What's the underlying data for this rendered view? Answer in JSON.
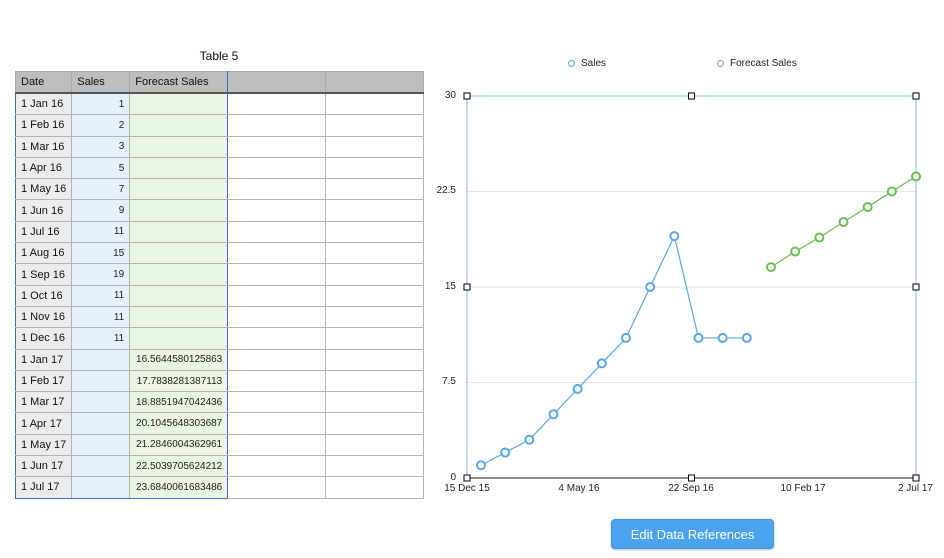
{
  "table": {
    "title": "Table 5",
    "headers": [
      "Date",
      "Sales",
      "Forecast Sales",
      "",
      ""
    ],
    "rows": [
      {
        "date": "1 Jan 16",
        "sales": "1",
        "forecast": ""
      },
      {
        "date": "1 Feb 16",
        "sales": "2",
        "forecast": ""
      },
      {
        "date": "1 Mar 16",
        "sales": "3",
        "forecast": ""
      },
      {
        "date": "1 Apr 16",
        "sales": "5",
        "forecast": ""
      },
      {
        "date": "1 May 16",
        "sales": "7",
        "forecast": ""
      },
      {
        "date": "1 Jun 16",
        "sales": "9",
        "forecast": ""
      },
      {
        "date": "1 Jul 16",
        "sales": "11",
        "forecast": ""
      },
      {
        "date": "1 Aug 16",
        "sales": "15",
        "forecast": ""
      },
      {
        "date": "1 Sep 16",
        "sales": "19",
        "forecast": ""
      },
      {
        "date": "1 Oct 16",
        "sales": "11",
        "forecast": ""
      },
      {
        "date": "1 Nov 16",
        "sales": "11",
        "forecast": ""
      },
      {
        "date": "1 Dec 16",
        "sales": "11",
        "forecast": ""
      },
      {
        "date": "1 Jan 17",
        "sales": "",
        "forecast": "16.5644580125863"
      },
      {
        "date": "1 Feb 17",
        "sales": "",
        "forecast": "17.7838281387113"
      },
      {
        "date": "1 Mar 17",
        "sales": "",
        "forecast": "18.8851947042436"
      },
      {
        "date": "1 Apr 17",
        "sales": "",
        "forecast": "20.1045648303687"
      },
      {
        "date": "1 May 17",
        "sales": "",
        "forecast": "21.2846004362961"
      },
      {
        "date": "1 Jun 17",
        "sales": "",
        "forecast": "22.5039705624212"
      },
      {
        "date": "1 Jul 17",
        "sales": "",
        "forecast": "23.6840061683486"
      }
    ]
  },
  "chart": {
    "legend": {
      "sales": "Sales",
      "forecast": "Forecast Sales"
    },
    "y_ticks": [
      "30",
      "22.5",
      "15",
      "7.5",
      "0"
    ],
    "x_ticks": [
      "15 Dec 15",
      "4 May 16",
      "22 Sep 16",
      "10 Feb 17",
      "2 Jul 17"
    ],
    "colors": {
      "sales": "#5aa7ea",
      "forecast": "#6cbd54",
      "frame": "#8fb3ef"
    }
  },
  "chart_data": {
    "type": "line",
    "title": "",
    "xlabel": "",
    "ylabel": "",
    "ylim": [
      0,
      30
    ],
    "x_tick_labels": [
      "15 Dec 15",
      "4 May 16",
      "22 Sep 16",
      "10 Feb 17",
      "2 Jul 17"
    ],
    "y_tick_labels": [
      "0",
      "7.5",
      "15",
      "22.5",
      "30"
    ],
    "legend_position": "top",
    "grid": true,
    "series": [
      {
        "name": "Sales",
        "x": [
          "1 Jan 16",
          "1 Feb 16",
          "1 Mar 16",
          "1 Apr 16",
          "1 May 16",
          "1 Jun 16",
          "1 Jul 16",
          "1 Aug 16",
          "1 Sep 16",
          "1 Oct 16",
          "1 Nov 16",
          "1 Dec 16"
        ],
        "values": [
          1,
          2,
          3,
          5,
          7,
          9,
          11,
          15,
          19,
          11,
          11,
          11
        ]
      },
      {
        "name": "Forecast Sales",
        "x": [
          "1 Jan 17",
          "1 Feb 17",
          "1 Mar 17",
          "1 Apr 17",
          "1 May 17",
          "1 Jun 17",
          "1 Jul 17"
        ],
        "values": [
          16.5644580125863,
          17.7838281387113,
          18.8851947042436,
          20.1045648303687,
          21.2846004362961,
          22.5039705624212,
          23.6840061683486
        ]
      }
    ]
  },
  "button": {
    "edit_data_references": "Edit Data References"
  }
}
